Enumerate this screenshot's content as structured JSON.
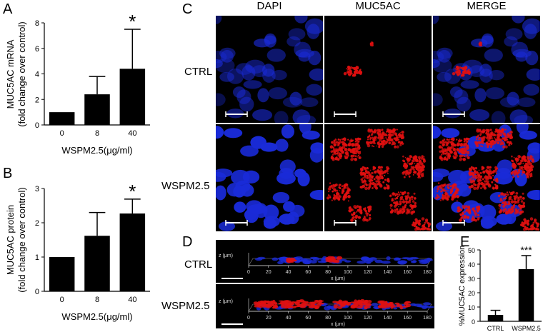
{
  "panel_labels": {
    "a": "A",
    "b": "B",
    "c": "C",
    "d": "D",
    "e": "E"
  },
  "colors": {
    "bar": "#000000",
    "dapi": "#1a2bd8",
    "muc5ac": "#e01010",
    "background": "#000000"
  },
  "chart_data": [
    {
      "type": "bar",
      "panel": "A",
      "categories": [
        "0",
        "8",
        "40"
      ],
      "values": [
        1.0,
        2.4,
        4.4
      ],
      "errors": [
        0,
        1.4,
        3.1
      ],
      "significance": [
        "",
        "",
        "*"
      ],
      "ylabel_line1": "MUC5AC mRNA",
      "ylabel_line2": "(fold change over control)",
      "xlabel": "WSPM2.5(μg/ml)",
      "ylim": [
        0,
        8
      ],
      "yticks": [
        0,
        2,
        4,
        6,
        8
      ]
    },
    {
      "type": "bar",
      "panel": "B",
      "categories": [
        "0",
        "8",
        "40"
      ],
      "values": [
        1.0,
        1.62,
        2.27
      ],
      "errors": [
        0,
        0.68,
        0.42
      ],
      "significance": [
        "",
        "",
        "*"
      ],
      "ylabel_line1": "MUC5AC protein",
      "ylabel_line2": "(fold change over  control)",
      "xlabel": "WSPM2.5(μg/ml)",
      "ylim": [
        0,
        3
      ],
      "yticks": [
        0,
        1,
        2,
        3
      ]
    },
    {
      "type": "bar",
      "panel": "E",
      "categories": [
        "CTRL",
        "WSPM2.5"
      ],
      "values": [
        4.5,
        36.5
      ],
      "errors": [
        3.2,
        9.5
      ],
      "significance": [
        "",
        "***"
      ],
      "ylabel": "%MUC5AC expression",
      "ylim": [
        0,
        50
      ],
      "yticks": [
        0,
        10,
        20,
        30,
        40,
        50
      ]
    }
  ],
  "panel_c": {
    "columns": [
      "DAPI",
      "MUC5AC",
      "MERGE"
    ],
    "rows": [
      "CTRL",
      "WSPM2.5"
    ]
  },
  "panel_d": {
    "rows": [
      "CTRL",
      "WSPM2.5"
    ],
    "z_label": "z (μm)",
    "x_label": "x (μm)",
    "x_ticks": [
      "0",
      "20",
      "40",
      "60",
      "80",
      "100",
      "120",
      "140",
      "160",
      "180"
    ]
  }
}
